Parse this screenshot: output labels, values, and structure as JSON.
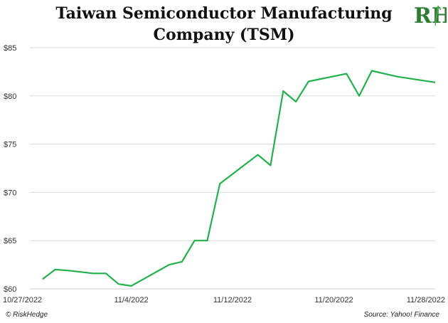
{
  "title_line1": "Taiwan Semiconductor Manufacturing",
  "title_line2": "Company (TSM)",
  "logo_text": "RH",
  "footer": {
    "left": "© RiskHedge",
    "right": "Source: Yahoo! Finance"
  },
  "colors": {
    "line": "#22b14c",
    "grid": "#d9d9d9",
    "logo": "#2e7d32"
  },
  "chart_data": {
    "type": "line",
    "title": "Taiwan Semiconductor Manufacturing Company (TSM)",
    "xlabel": "",
    "ylabel": "",
    "ylim": [
      60,
      85
    ],
    "yticks": [
      60,
      65,
      70,
      75,
      80,
      85
    ],
    "ytick_labels": [
      "$60",
      "$65",
      "$70",
      "$75",
      "$80",
      "$85"
    ],
    "xticks": [
      "10/27/2022",
      "11/4/2022",
      "11/12/2022",
      "11/20/2022",
      "11/28/2022"
    ],
    "grid": "horizontal",
    "series": [
      {
        "x": [
          "10/28/2022",
          "10/29/2022",
          "10/30/2022",
          "11/1/2022",
          "11/2/2022",
          "11/3/2022",
          "11/4/2022",
          "11/7/2022",
          "11/8/2022",
          "11/9/2022",
          "11/10/2022",
          "11/11/2022",
          "11/14/2022",
          "11/15/2022",
          "11/16/2022",
          "11/17/2022",
          "11/18/2022",
          "11/21/2022",
          "11/22/2022",
          "11/23/2022",
          "11/25/2022",
          "11/28/2022"
        ],
        "values": [
          61.0,
          62.0,
          61.9,
          61.6,
          61.6,
          60.5,
          60.3,
          62.5,
          62.8,
          65.0,
          65.0,
          70.9,
          73.9,
          72.8,
          80.5,
          79.4,
          81.5,
          82.3,
          80.0,
          82.6,
          82.0,
          81.4
        ]
      }
    ]
  }
}
